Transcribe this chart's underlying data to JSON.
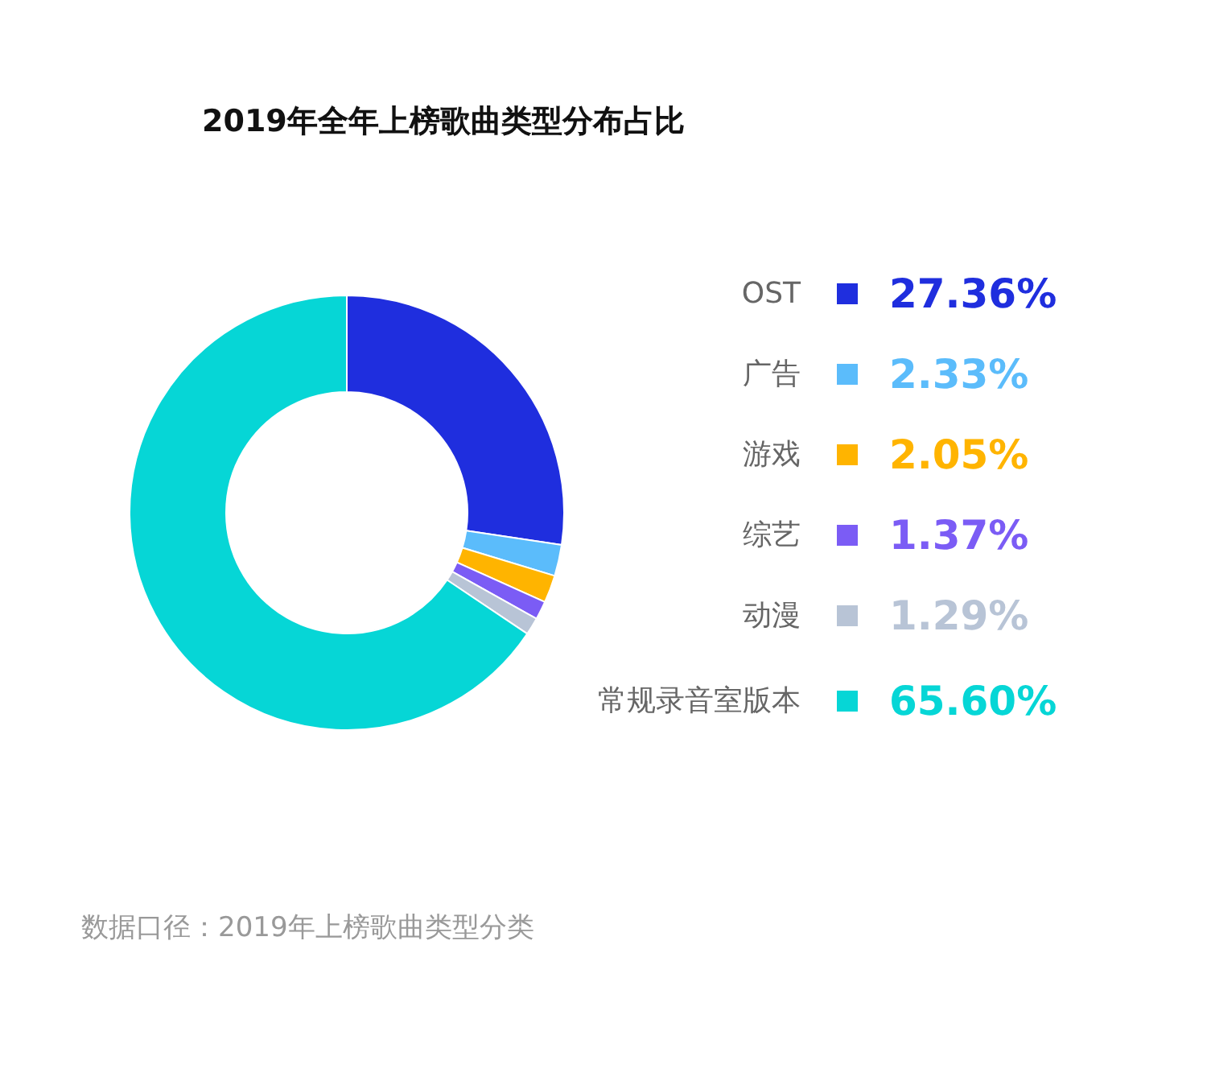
{
  "chart_data": {
    "type": "donut",
    "title": "2019年全年上榜歌曲类型分布占比",
    "categories": [
      "OST",
      "广告",
      "游戏",
      "综艺",
      "动漫",
      "常规录音室版本"
    ],
    "values": [
      27.36,
      2.33,
      2.05,
      1.37,
      1.29,
      65.6
    ],
    "value_labels": [
      "27.36%",
      "2.33%",
      "2.05%",
      "1.37%",
      "1.29%",
      "65.60%"
    ],
    "colors": [
      "#1f2ede",
      "#5bbcfb",
      "#ffb400",
      "#7b5cf5",
      "#b8c4d6",
      "#06d6d6"
    ],
    "legend": "right",
    "annotations": [
      "数据口径：2019年上榜歌曲类型分类"
    ]
  }
}
